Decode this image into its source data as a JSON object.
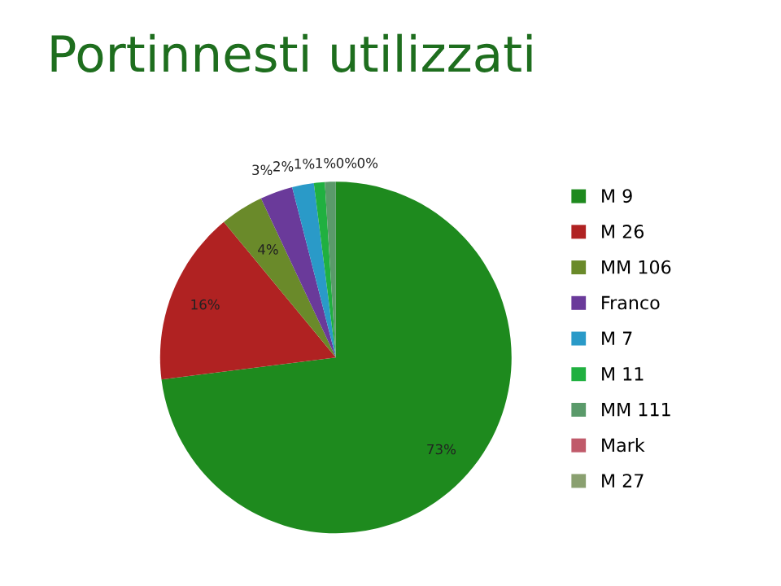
{
  "chart_data": {
    "type": "pie",
    "title": "Portinnesti utilizzati",
    "categories": [
      "M 9",
      "M 26",
      "MM 106",
      "Franco",
      "M 7",
      "M 11",
      "MM 111",
      "Mark",
      "M 27"
    ],
    "values": [
      73,
      16,
      4,
      3,
      2,
      1,
      1,
      0,
      0
    ],
    "colors": [
      "#1e8a1e",
      "#b02222",
      "#6a8a2a",
      "#6a3a9a",
      "#2a9ac8",
      "#20b040",
      "#5a9a6a",
      "#c05a6a",
      "#8aa070"
    ],
    "value_labels": [
      "73%",
      "16%",
      "4%",
      "3%",
      "2%",
      "1%",
      "1%",
      "0%",
      "0%"
    ],
    "legend": "right"
  }
}
